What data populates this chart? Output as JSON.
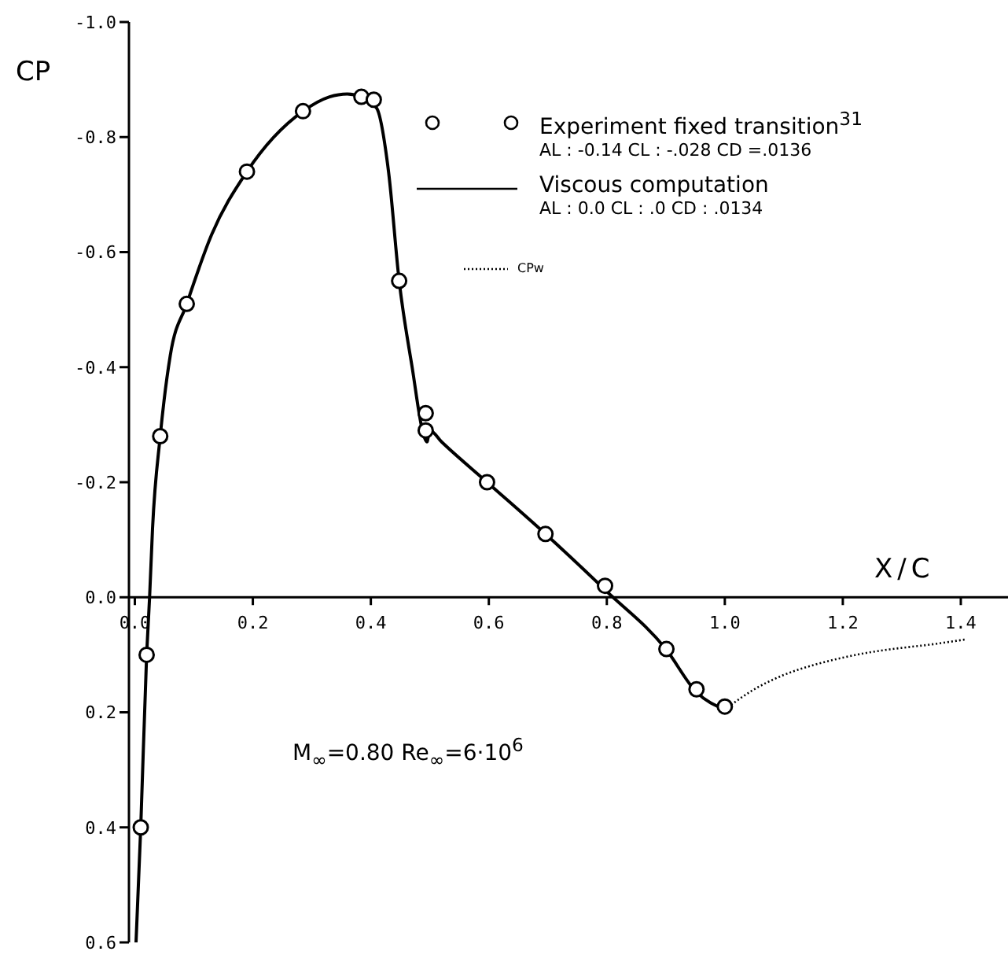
{
  "chart_data": {
    "type": "line",
    "xlabel": "X/C",
    "ylabel": "CP",
    "annotations": [
      "AL : -0.14  CL : -.028  CD =.0136",
      "AL : 0.0   CL : .0   CD : .0134",
      "M$_{∞}$=0.80  Re$_{∞}$=6·10$^{6}$"
    ],
    "xlim": [
      -0.01,
      1.48
    ],
    "xticks": [
      {
        "value": 0,
        "label": "0.0"
      },
      0.2,
      0.4,
      0.6,
      0.8,
      {
        "value": 1,
        "label": "1.0"
      },
      1.2,
      1.4
    ],
    "ylim": [
      0.6,
      -1.0
    ],
    "yticks": [
      {
        "value": -1,
        "label": "-1.0"
      },
      -0.8,
      -0.6,
      -0.4,
      -0.2,
      {
        "value": 0,
        "label": "0.0"
      },
      0.2,
      0.4,
      0.6
    ],
    "legend": "top right",
    "series": [
      {
        "name": "Experiment fixed transition$^{31}$",
        "type": "scatter",
        "marker": "circle",
        "color": "#000000",
        "x": [
          0.02,
          0.01,
          0.043,
          0.088,
          0.19,
          0.285,
          0.384,
          0.405,
          0.448,
          0.493,
          0.493,
          0.597,
          0.696,
          0.797,
          0.901,
          0.952,
          1.0
        ],
        "values": [
          0.1,
          0.4,
          -0.28,
          -0.51,
          -0.74,
          -0.845,
          -0.87,
          -0.865,
          -0.55,
          -0.32,
          -0.29,
          -0.2,
          -0.11,
          -0.02,
          0.09,
          0.16,
          0.19
        ]
      },
      {
        "name": "Viscous computation",
        "marker": "none",
        "line_style": "solid",
        "color": "#000000",
        "x": [
          0.002,
          0.01,
          0.02,
          0.025,
          0.03,
          0.043,
          0.06,
          0.088,
          0.13,
          0.19,
          0.285,
          0.33,
          0.36,
          0.384,
          0.41,
          0.43,
          0.448,
          0.47,
          0.49,
          0.495,
          0.5,
          0.52,
          0.597,
          0.696,
          0.8,
          0.9,
          0.952,
          1.0
        ],
        "values": [
          0.6,
          0.4,
          0.1,
          0.0,
          -0.12,
          -0.28,
          -0.42,
          -0.51,
          -0.63,
          -0.74,
          -0.845,
          -0.87,
          -0.875,
          -0.87,
          -0.85,
          -0.74,
          -0.55,
          -0.4,
          -0.28,
          -0.27,
          -0.29,
          -0.27,
          -0.2,
          -0.11,
          -0.01,
          0.09,
          0.165,
          0.195
        ]
      },
      {
        "name": "CPw",
        "marker": "none",
        "line_style": "dotted",
        "color": "#000000",
        "x": [
          1.0,
          1.05,
          1.1,
          1.15,
          1.2,
          1.25,
          1.3,
          1.35,
          1.41
        ],
        "values": [
          0.195,
          0.16,
          0.135,
          0.118,
          0.105,
          0.095,
          0.088,
          0.082,
          0.073
        ]
      }
    ]
  }
}
